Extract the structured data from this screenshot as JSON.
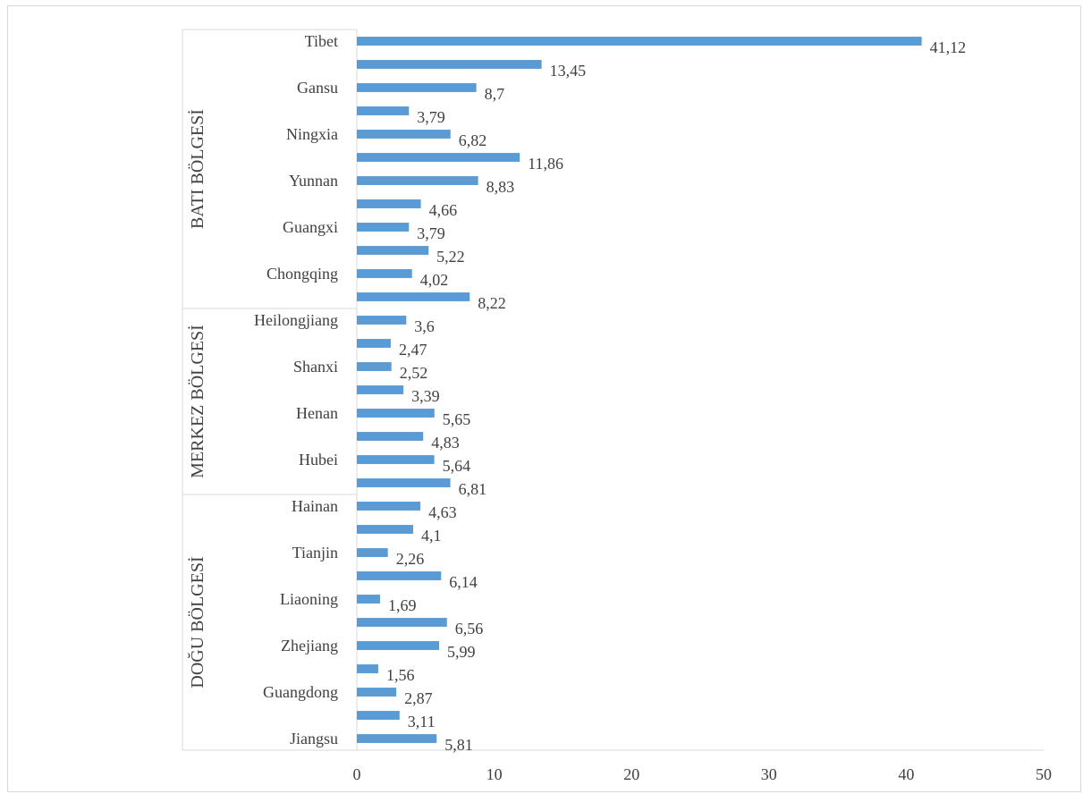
{
  "chart_data": {
    "type": "bar",
    "orientation": "horizontal",
    "xlim": [
      0,
      50
    ],
    "x_ticks": [
      "0",
      "10",
      "20",
      "30",
      "40",
      "50"
    ],
    "grid": false,
    "bar_color": "#5b9bd5",
    "groups": [
      {
        "name": "BATI BÖLGESİ",
        "start": 0,
        "count": 12
      },
      {
        "name": "MERKEZ BÖLGESİ",
        "start": 12,
        "count": 8
      },
      {
        "name": "DOĞU BÖLGESİ",
        "start": 20,
        "count": 11
      }
    ],
    "categories": [
      "Tibet",
      "",
      "Gansu",
      "",
      "Ningxia",
      "",
      "Yunnan",
      "",
      "Guangxi",
      "",
      "Chongqing",
      "",
      "Heilongjiang",
      "",
      "Shanxi",
      "",
      "Henan",
      "",
      "Hubei",
      "",
      "Hainan",
      "",
      "Tianjin",
      "",
      "Liaoning",
      "",
      "Zhejiang",
      "",
      "Guangdong",
      "",
      "Jiangsu"
    ],
    "values": [
      41.12,
      13.45,
      8.7,
      3.79,
      6.82,
      11.86,
      8.83,
      4.66,
      3.79,
      5.22,
      4.02,
      8.22,
      3.6,
      2.47,
      2.52,
      3.39,
      5.65,
      4.83,
      5.64,
      6.81,
      4.63,
      4.1,
      2.26,
      6.14,
      1.69,
      6.56,
      5.99,
      1.56,
      2.87,
      3.11,
      5.81
    ],
    "value_labels": [
      "41,12",
      "13,45",
      "8,7",
      "3,79",
      "6,82",
      "11,86",
      "8,83",
      "4,66",
      "3,79",
      "5,22",
      "4,02",
      "8,22",
      "3,6",
      "2,47",
      "2,52",
      "3,39",
      "5,65",
      "4,83",
      "5,64",
      "6,81",
      "4,63",
      "4,1",
      "2,26",
      "6,14",
      "1,69",
      "6,56",
      "5,99",
      "1,56",
      "2,87",
      "3,11",
      "5,81"
    ]
  }
}
